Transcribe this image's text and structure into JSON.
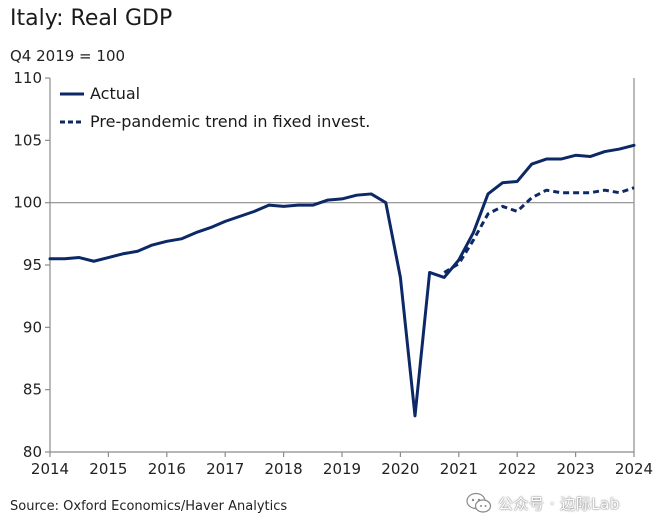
{
  "header": {
    "title": "Italy: Real GDP",
    "subtitle": "Q4 2019 = 100"
  },
  "footer": {
    "source": "Source: Oxford Economics/Haver Analytics",
    "watermark": "公众号 · 边际Lab"
  },
  "colors": {
    "series": "#0d2866",
    "reference_line": "#8c8c8c",
    "axis": "#8c8c8c"
  },
  "icons": {
    "watermark": "wechat-icon"
  },
  "chart_data": {
    "type": "line",
    "title": "Italy: Real GDP",
    "subtitle": "Q4 2019 = 100",
    "xlabel": "",
    "ylabel": "",
    "xlim": [
      2014,
      2024
    ],
    "ylim": [
      80,
      110
    ],
    "x_ticks": [
      2014,
      2015,
      2016,
      2017,
      2018,
      2019,
      2020,
      2021,
      2022,
      2023,
      2024
    ],
    "y_ticks": [
      80,
      85,
      90,
      95,
      100,
      105,
      110
    ],
    "x_tick_labels": [
      "2014",
      "2015",
      "2016",
      "2017",
      "2018",
      "2019",
      "2020",
      "2021",
      "2022",
      "2023",
      "2024"
    ],
    "y_tick_labels": [
      "80",
      "85",
      "90",
      "95",
      "100",
      "105",
      "110"
    ],
    "reference_line": 100,
    "legend_position": "top-left",
    "series": [
      {
        "name": "Actual",
        "style": "solid",
        "x": [
          2014.0,
          2014.25,
          2014.5,
          2014.75,
          2015.0,
          2015.25,
          2015.5,
          2015.75,
          2016.0,
          2016.25,
          2016.5,
          2016.75,
          2017.0,
          2017.25,
          2017.5,
          2017.75,
          2018.0,
          2018.25,
          2018.5,
          2018.75,
          2019.0,
          2019.25,
          2019.5,
          2019.75,
          2020.0,
          2020.25,
          2020.5,
          2020.75,
          2021.0,
          2021.25,
          2021.5,
          2021.75,
          2022.0,
          2022.25,
          2022.5,
          2022.75,
          2023.0,
          2023.25,
          2023.5,
          2023.75,
          2024.0
        ],
        "values": [
          95.5,
          95.5,
          95.6,
          95.3,
          95.6,
          95.9,
          96.1,
          96.6,
          96.9,
          97.1,
          97.6,
          98.0,
          98.5,
          98.9,
          99.3,
          99.8,
          99.7,
          99.8,
          99.8,
          100.2,
          100.3,
          100.6,
          100.7,
          100.0,
          94.0,
          82.9,
          94.4,
          94.0,
          95.4,
          97.6,
          100.7,
          101.6,
          101.7,
          103.1,
          103.5,
          103.5,
          103.8,
          103.7,
          104.1,
          104.3,
          104.6
        ]
      },
      {
        "name": "Pre-pandemic trend in fixed invest.",
        "style": "dashed",
        "x": [
          2020.75,
          2021.0,
          2021.25,
          2021.5,
          2021.75,
          2022.0,
          2022.25,
          2022.5,
          2022.75,
          2023.0,
          2023.25,
          2023.5,
          2023.75,
          2024.0
        ],
        "values": [
          94.4,
          95.1,
          97.0,
          99.1,
          99.7,
          99.3,
          100.4,
          101.0,
          100.8,
          100.8,
          100.8,
          101.0,
          100.8,
          101.2
        ]
      }
    ]
  }
}
